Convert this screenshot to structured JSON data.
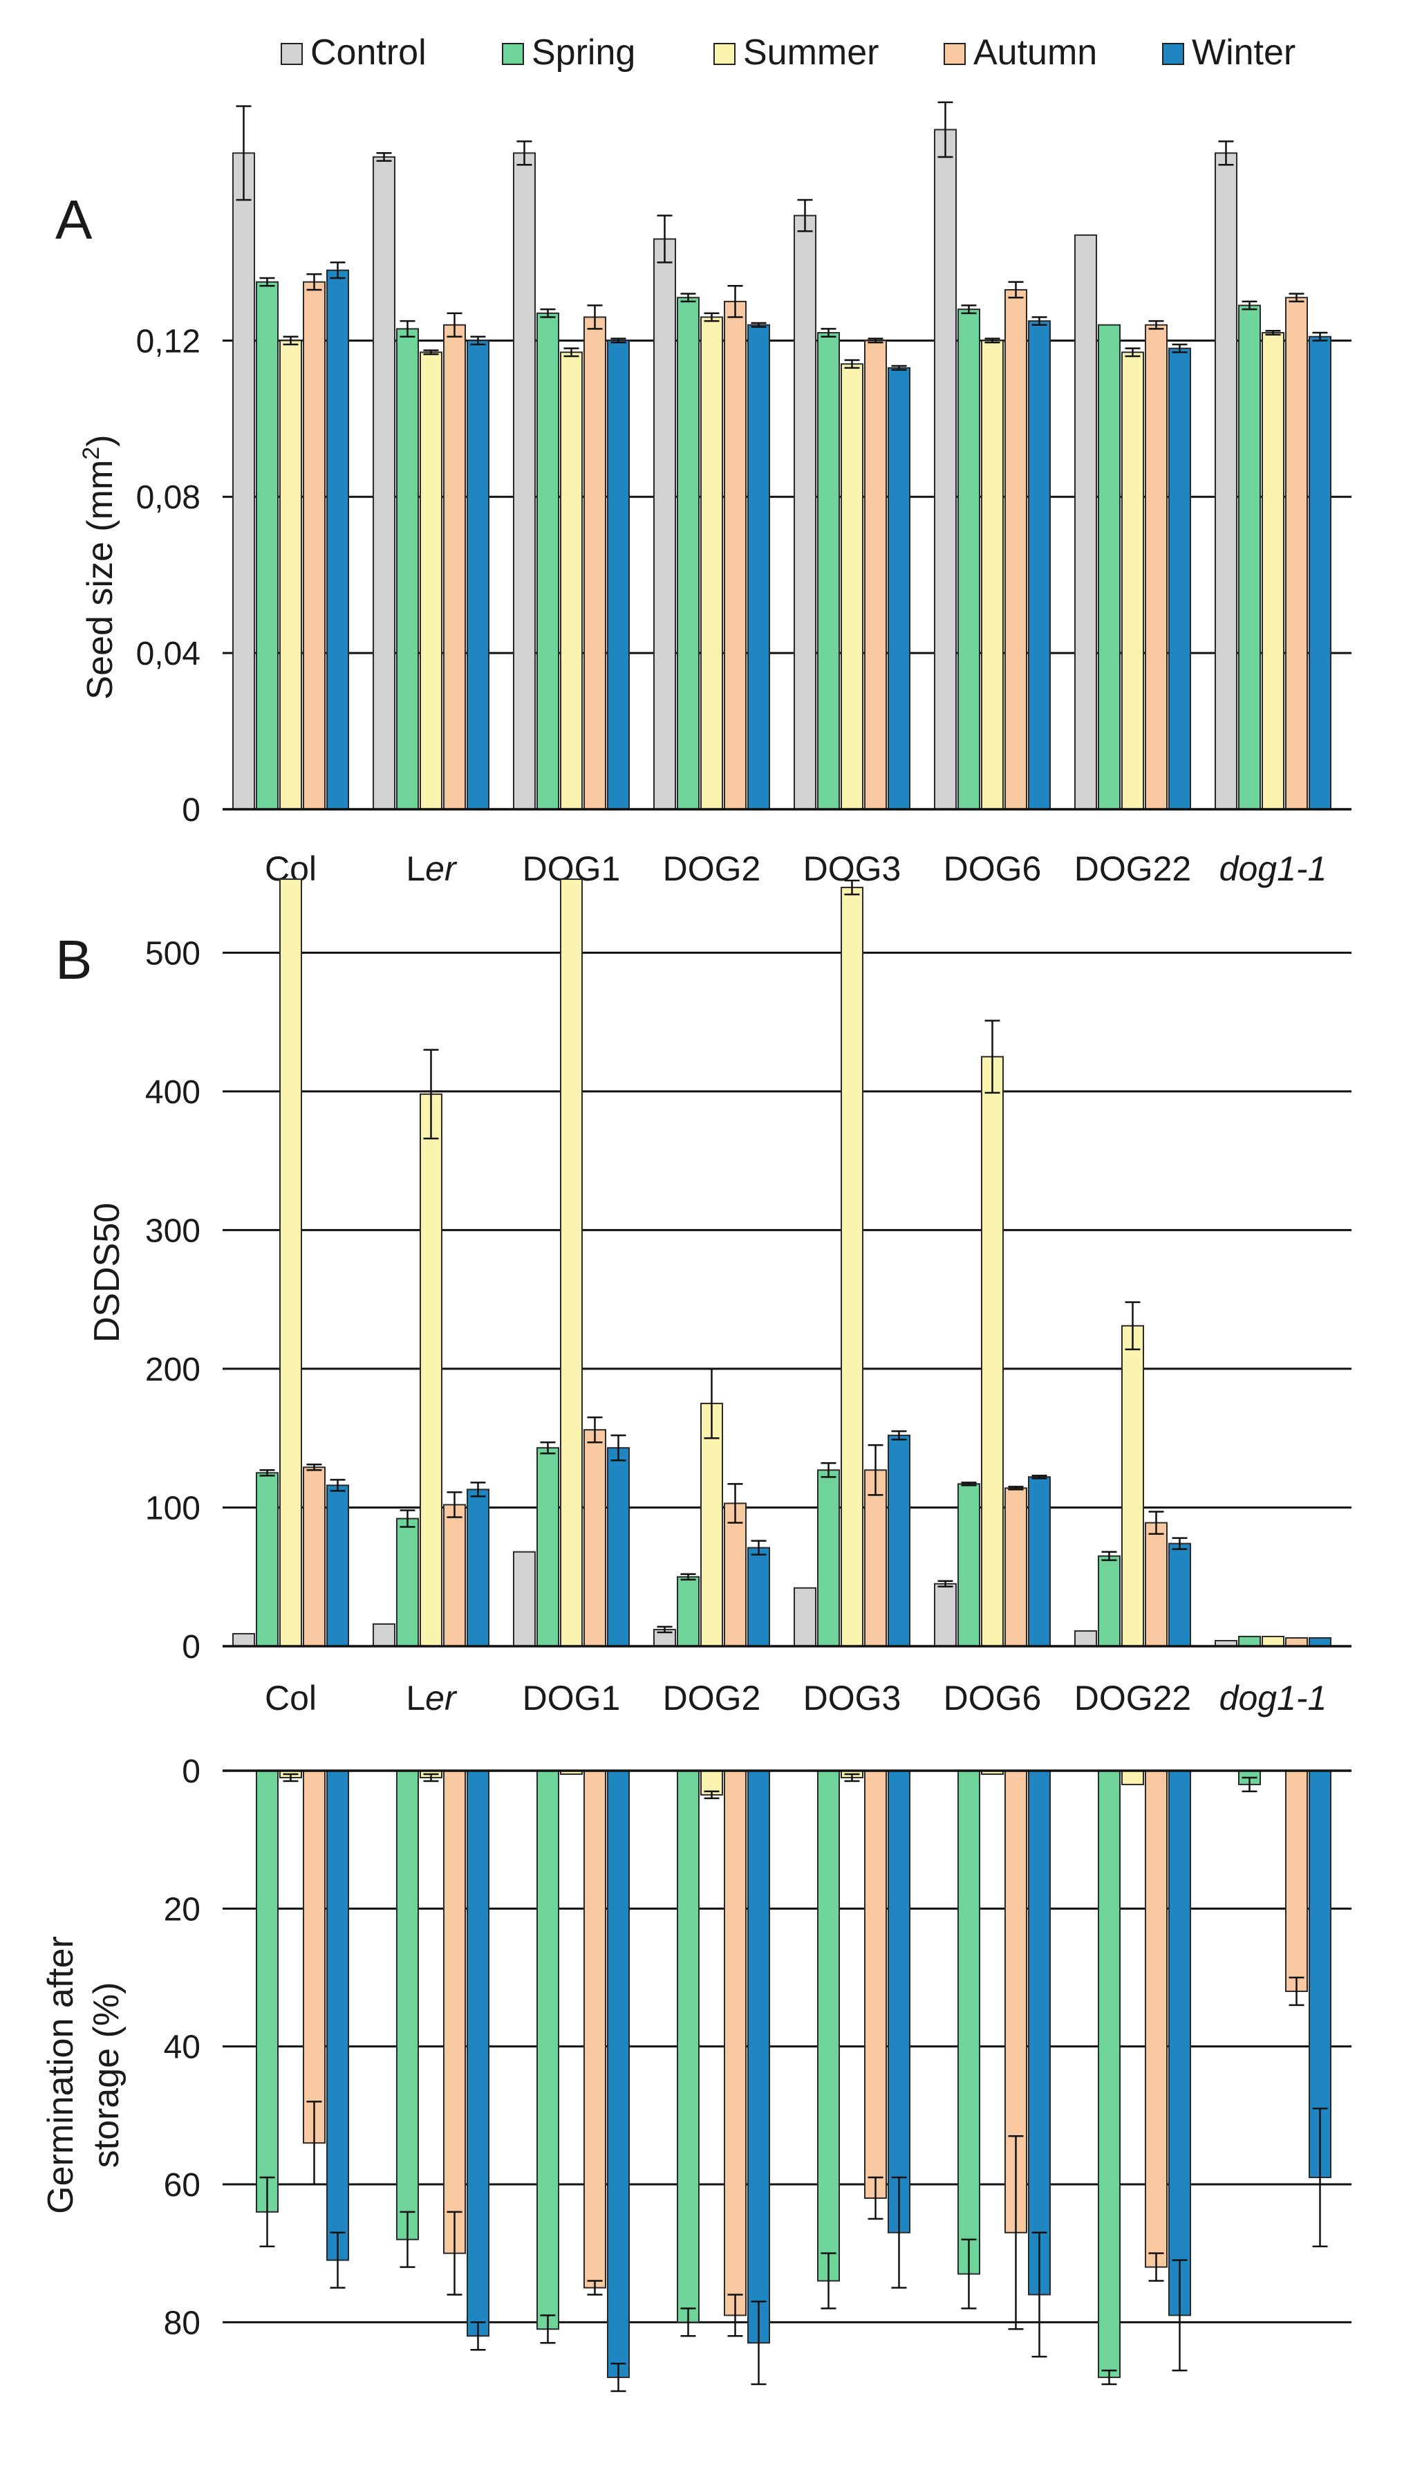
{
  "legend": {
    "entries": [
      {
        "label": "Control",
        "color": "#d2d2d2"
      },
      {
        "label": "Spring",
        "color": "#6fd49a"
      },
      {
        "label": "Summer",
        "color": "#fbf3b0"
      },
      {
        "label": "Autumn",
        "color": "#f8c8a0"
      },
      {
        "label": "Winter",
        "color": "#1f86c2"
      }
    ]
  },
  "chart_data": [
    {
      "panel": "A",
      "type": "bar",
      "ylabel": "Seed size (mm²)",
      "ylabel_main": "Seed size (mm",
      "ylabel_sup": "2",
      "ylabel_end": ")",
      "ylim": [
        0,
        0.17
      ],
      "yticks": [
        0,
        0.04,
        0.08,
        0.12
      ],
      "yticklabels": [
        "0",
        "0,04",
        "0,08",
        "0,12"
      ],
      "grid": true,
      "categories": [
        "Col",
        "Ler",
        "DOG1",
        "DOG2",
        "DOG3",
        "DOG6",
        "DOG22",
        "dog1-1"
      ],
      "series": [
        {
          "name": "Control",
          "values": [
            0.168,
            0.167,
            0.168,
            0.146,
            0.152,
            0.174,
            0.147,
            0.168
          ],
          "errors": [
            0.012,
            0.001,
            0.003,
            0.006,
            0.004,
            0.007,
            0,
            0.003
          ]
        },
        {
          "name": "Spring",
          "values": [
            0.135,
            0.123,
            0.127,
            0.131,
            0.122,
            0.128,
            0.124,
            0.129
          ],
          "errors": [
            0.001,
            0.002,
            0.001,
            0.001,
            0.001,
            0.001,
            0,
            0.001
          ]
        },
        {
          "name": "Summer",
          "values": [
            0.12,
            0.117,
            0.117,
            0.126,
            0.114,
            0.12,
            0.117,
            0.122
          ],
          "errors": [
            0.001,
            0.0005,
            0.001,
            0.001,
            0.001,
            0.0005,
            0.001,
            0.0005
          ]
        },
        {
          "name": "Autumn",
          "values": [
            0.135,
            0.124,
            0.126,
            0.13,
            0.12,
            0.133,
            0.124,
            0.131
          ],
          "errors": [
            0.002,
            0.003,
            0.003,
            0.004,
            0.0005,
            0.002,
            0.001,
            0.001
          ]
        },
        {
          "name": "Winter",
          "values": [
            0.138,
            0.12,
            0.12,
            0.124,
            0.113,
            0.125,
            0.118,
            0.121
          ],
          "errors": [
            0.002,
            0.001,
            0.0005,
            0.0005,
            0.0005,
            0.001,
            0.001,
            0.001
          ]
        }
      ]
    },
    {
      "panel": "B",
      "type": "bar",
      "ylabel": "DSDS50",
      "ylim": [
        0,
        560
      ],
      "yticks": [
        0,
        100,
        200,
        300,
        400,
        500
      ],
      "yticklabels": [
        "0",
        "100",
        "200",
        "300",
        "400",
        "500"
      ],
      "grid": true,
      "categories": [
        "Col",
        "Ler",
        "DOG1",
        "DOG2",
        "DOG3",
        "DOG6",
        "DOG22",
        "dog1-1"
      ],
      "series": [
        {
          "name": "Control",
          "values": [
            9,
            16,
            68,
            12,
            42,
            45,
            11,
            4
          ],
          "errors": [
            0,
            0,
            0,
            2,
            0,
            2,
            0,
            0
          ]
        },
        {
          "name": "Spring",
          "values": [
            125,
            92,
            143,
            50,
            127,
            117,
            65,
            7
          ],
          "errors": [
            2,
            6,
            4,
            2,
            5,
            1,
            3,
            0
          ]
        },
        {
          "name": "Summer",
          "values": [
            553,
            398,
            553,
            175,
            547,
            425,
            231,
            7
          ],
          "errors": [
            0,
            32,
            0,
            25,
            5,
            26,
            17,
            0
          ]
        },
        {
          "name": "Autumn",
          "values": [
            129,
            102,
            156,
            103,
            127,
            114,
            89,
            6
          ],
          "errors": [
            2,
            9,
            9,
            14,
            18,
            1,
            8,
            0
          ]
        },
        {
          "name": "Winter",
          "values": [
            116,
            113,
            143,
            71,
            152,
            122,
            74,
            6
          ],
          "errors": [
            4,
            5,
            9,
            5,
            3,
            1,
            4,
            0
          ]
        }
      ]
    },
    {
      "panel": "B-lower",
      "type": "bar",
      "orientation": "downward",
      "ylabel_line1": "Germination after",
      "ylabel_line2": "storage (%)",
      "ylabel": "Germination after storage (%)",
      "ylim": [
        0,
        90
      ],
      "yticks": [
        0,
        20,
        40,
        60,
        80
      ],
      "yticklabels": [
        "0",
        "20",
        "40",
        "60",
        "80"
      ],
      "grid": true,
      "categories": [
        "Col",
        "Ler",
        "DOG1",
        "DOG2",
        "DOG3",
        "DOG6",
        "DOG22",
        "dog1-1"
      ],
      "series": [
        {
          "name": "Control",
          "values": [
            0,
            0,
            0,
            0,
            0,
            0,
            0,
            0
          ],
          "errors": [
            0,
            0,
            0,
            0,
            0,
            0,
            0,
            0
          ]
        },
        {
          "name": "Spring",
          "values": [
            64,
            68,
            81,
            80,
            74,
            73,
            88,
            2
          ],
          "errors": [
            5,
            4,
            2,
            2,
            4,
            5,
            1,
            1
          ]
        },
        {
          "name": "Summer",
          "values": [
            1,
            1,
            0.5,
            3.5,
            1,
            0.5,
            2,
            0
          ],
          "errors": [
            0.5,
            0.5,
            0,
            0.5,
            0.5,
            0,
            0,
            0
          ]
        },
        {
          "name": "Autumn",
          "values": [
            54,
            70,
            75,
            79,
            62,
            67,
            72,
            32
          ],
          "errors": [
            6,
            6,
            1,
            3,
            3,
            14,
            2,
            2
          ]
        },
        {
          "name": "Winter",
          "values": [
            71,
            82,
            88,
            83,
            67,
            76,
            79,
            59
          ],
          "errors": [
            4,
            2,
            2,
            6,
            8,
            9,
            8,
            10
          ]
        }
      ]
    }
  ]
}
